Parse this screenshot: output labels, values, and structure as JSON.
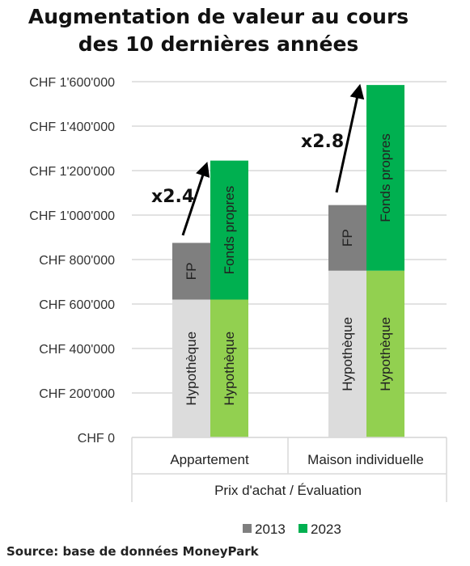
{
  "title": {
    "line1": "Augmentation de valeur au cours",
    "line2": "des 10 dernières années"
  },
  "source": "Source: base de données MoneyPark",
  "colors": {
    "hypotheque_2013": "#dcdcdc",
    "hypotheque_2023": "#92d050",
    "fp_2013": "#7f7f7f",
    "fonds_propres_2023": "#00b050",
    "gridline": "#d9d9d9",
    "arrow": "#000000"
  },
  "chart_data": {
    "type": "bar",
    "stacked": true,
    "title": "Augmentation de valeur au cours des 10 dernières années",
    "xlabel": "Prix d'achat / Évaluation",
    "ylabel": "",
    "ylim": [
      0,
      1600000
    ],
    "yticks": [
      0,
      200000,
      400000,
      600000,
      800000,
      1000000,
      1200000,
      1400000,
      1600000
    ],
    "ytick_labels": [
      "CHF 0",
      "CHF 200'000",
      "CHF 400'000",
      "CHF 600'000",
      "CHF 800'000",
      "CHF 1'000'000",
      "CHF 1'200'000",
      "CHF 1'400'000",
      "CHF 1'600'000"
    ],
    "grid": true,
    "legend_position": "bottom",
    "legend": [
      {
        "name": "2013",
        "color": "#7f7f7f"
      },
      {
        "name": "2023",
        "color": "#00b050"
      }
    ],
    "categories": [
      "Appartement",
      "Maison individuelle"
    ],
    "groups": [
      {
        "category": "Appartement",
        "bars": [
          {
            "year": "2013",
            "segments": [
              {
                "label": "Hypothèque",
                "value": 620000,
                "color": "#dcdcdc"
              },
              {
                "label": "FP",
                "value": 255000,
                "color": "#7f7f7f"
              }
            ]
          },
          {
            "year": "2023",
            "segments": [
              {
                "label": "Hypothèque",
                "value": 620000,
                "color": "#92d050"
              },
              {
                "label": "Fonds propres",
                "value": 625000,
                "color": "#00b050"
              }
            ]
          }
        ],
        "annotation": "x2.4"
      },
      {
        "category": "Maison individuelle",
        "bars": [
          {
            "year": "2013",
            "segments": [
              {
                "label": "Hypothèque",
                "value": 750000,
                "color": "#dcdcdc"
              },
              {
                "label": "FP",
                "value": 295000,
                "color": "#7f7f7f"
              }
            ]
          },
          {
            "year": "2023",
            "segments": [
              {
                "label": "Hypothèque",
                "value": 750000,
                "color": "#92d050"
              },
              {
                "label": "Fonds propres",
                "value": 835000,
                "color": "#00b050"
              }
            ]
          }
        ],
        "annotation": "x2.8"
      }
    ]
  }
}
